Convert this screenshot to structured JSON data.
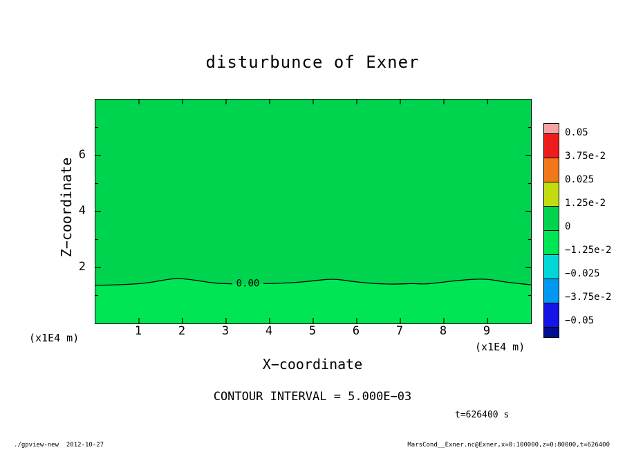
{
  "chart_data": {
    "type": "filled_contour",
    "title": "disturbunce of Exner",
    "xlabel": "X−coordinate",
    "ylabel": "Z−coordinate",
    "x_unit": "(x1E4 m)",
    "y_unit": "(x1E4 m)",
    "xlim": [
      0,
      10
    ],
    "ylim": [
      0,
      8
    ],
    "x_ticks": [
      1,
      2,
      3,
      4,
      5,
      6,
      7,
      8,
      9
    ],
    "y_ticks_major": [
      2,
      4,
      6
    ],
    "y_ticks_minor": [
      1,
      3,
      5,
      7
    ],
    "grid": false,
    "contour_interval_text": "CONTOUR INTERVAL = 5.000E−03",
    "time_label": "t=626400 s",
    "contour": {
      "level": 0,
      "level_label": "0.00",
      "label_x": 3.5,
      "fill_above_color": "#00d44e",
      "fill_below_color": "#00e554",
      "line_color": "#000000",
      "points": [
        [
          0,
          1.36
        ],
        [
          0.6,
          1.38
        ],
        [
          1.2,
          1.44
        ],
        [
          1.8,
          1.62
        ],
        [
          2.2,
          1.57
        ],
        [
          2.7,
          1.44
        ],
        [
          3.2,
          1.41
        ],
        [
          3.8,
          1.42
        ],
        [
          4.4,
          1.44
        ],
        [
          5.0,
          1.52
        ],
        [
          5.45,
          1.6
        ],
        [
          5.9,
          1.5
        ],
        [
          6.4,
          1.42
        ],
        [
          6.9,
          1.4
        ],
        [
          7.3,
          1.43
        ],
        [
          7.55,
          1.4
        ],
        [
          7.9,
          1.46
        ],
        [
          8.4,
          1.55
        ],
        [
          8.95,
          1.6
        ],
        [
          9.4,
          1.48
        ],
        [
          10,
          1.38
        ]
      ]
    },
    "colorbar": {
      "position": "right",
      "labels": [
        "0.05",
        "3.75e-2",
        "0.025",
        "1.25e-2",
        "0",
        "−1.25e-2",
        "−0.025",
        "−3.75e-2",
        "−0.05"
      ],
      "colors": [
        "#f7a2a2",
        "#ee1c1c",
        "#f07818",
        "#c3dc0f",
        "#00d44e",
        "#00e554",
        "#00d8d8",
        "#0098f0",
        "#1414e6",
        "#000f8f"
      ]
    }
  },
  "footer": {
    "left": "./gpview-new  2012-10-27",
    "right": "MarsCond__Exner.nc@Exner,x=0:100000,z=0:80000,t=626400"
  }
}
